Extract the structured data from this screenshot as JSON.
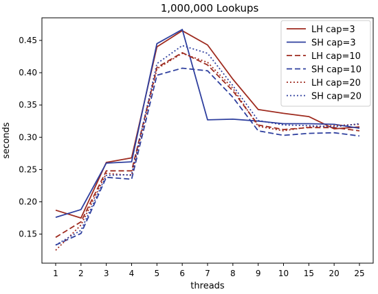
{
  "chart_data": {
    "type": "line",
    "title": "1,000,000 Lookups",
    "xlabel": "threads",
    "ylabel": "seconds",
    "categories": [
      "1",
      "2",
      "3",
      "4",
      "5",
      "6",
      "7",
      "8",
      "9",
      "10",
      "15",
      "20",
      "25"
    ],
    "ylim": [
      0.105,
      0.485
    ],
    "yticks": [
      "0.15",
      "0.20",
      "0.25",
      "0.30",
      "0.35",
      "0.40",
      "0.45"
    ],
    "grid": false,
    "legend_position": "top-right",
    "series": [
      {
        "name": "LH cap=3",
        "color": "#9e2a1e",
        "style": "solid",
        "values": [
          0.187,
          0.175,
          0.261,
          0.268,
          0.44,
          0.465,
          0.443,
          0.39,
          0.343,
          0.337,
          0.332,
          0.313,
          0.316
        ]
      },
      {
        "name": "SH cap=3",
        "color": "#2e3f9e",
        "style": "solid",
        "values": [
          0.176,
          0.188,
          0.26,
          0.262,
          0.445,
          0.467,
          0.327,
          0.328,
          0.325,
          0.321,
          0.321,
          0.32,
          0.314
        ]
      },
      {
        "name": "LH cap=10",
        "color": "#9e2a1e",
        "style": "dashed",
        "values": [
          0.145,
          0.169,
          0.248,
          0.248,
          0.408,
          0.431,
          0.412,
          0.372,
          0.319,
          0.312,
          0.315,
          0.315,
          0.31
        ]
      },
      {
        "name": "SH cap=10",
        "color": "#2e3f9e",
        "style": "dashed",
        "values": [
          0.133,
          0.151,
          0.238,
          0.235,
          0.396,
          0.407,
          0.403,
          0.362,
          0.31,
          0.303,
          0.306,
          0.307,
          0.302
        ]
      },
      {
        "name": "LH cap=20",
        "color": "#9e2a1e",
        "style": "dotted",
        "values": [
          0.125,
          0.164,
          0.244,
          0.241,
          0.406,
          0.43,
          0.416,
          0.376,
          0.317,
          0.31,
          0.316,
          0.318,
          0.32
        ]
      },
      {
        "name": "SH cap=20",
        "color": "#2e3f9e",
        "style": "dotted",
        "values": [
          0.133,
          0.156,
          0.241,
          0.242,
          0.414,
          0.442,
          0.43,
          0.38,
          0.326,
          0.319,
          0.318,
          0.316,
          0.321
        ]
      }
    ]
  }
}
